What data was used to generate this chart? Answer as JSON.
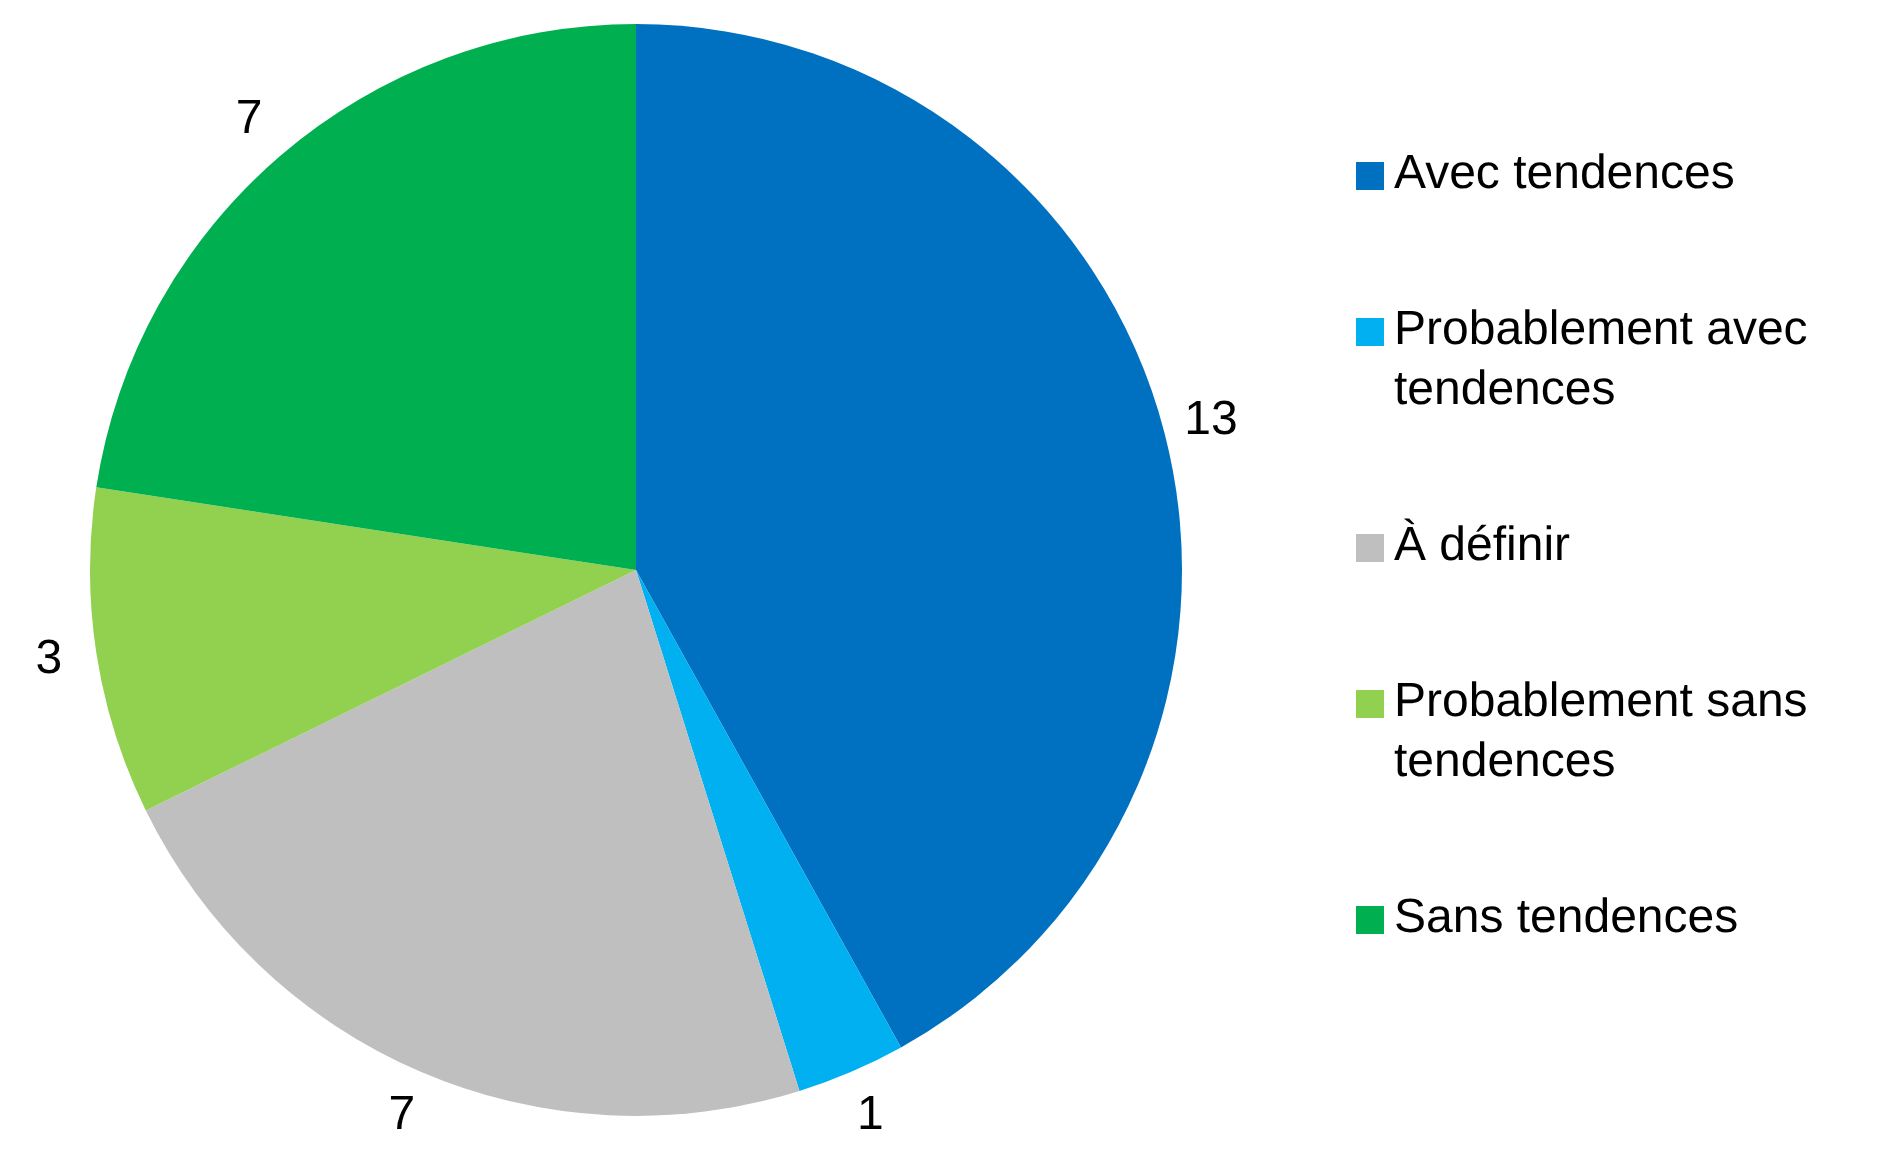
{
  "chart_data": {
    "type": "pie",
    "categories": [
      "Avec tendences",
      "Probablement avec tendences",
      "À définir",
      "Probablement sans tendences",
      "Sans tendences"
    ],
    "values": [
      13,
      1,
      7,
      3,
      7
    ],
    "colors": [
      "#0070c0",
      "#00b0f0",
      "#bfbfbf",
      "#92d050",
      "#00b050"
    ],
    "data_labels": true,
    "legend": "right"
  }
}
